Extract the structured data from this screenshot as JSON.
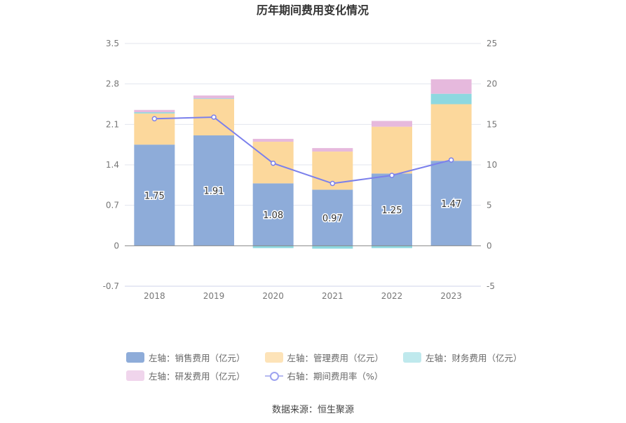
{
  "title": "历年期间费用变化情况",
  "source": "数据来源：恒生聚源",
  "chart_data": {
    "type": "bar",
    "stacked": true,
    "categories": [
      "2018",
      "2019",
      "2020",
      "2021",
      "2022",
      "2023"
    ],
    "left_axis": {
      "ylim": [
        -0.7,
        3.5
      ],
      "ticks": [
        "3.5",
        "2.8",
        "2.1",
        "1.4",
        "0.7",
        "0",
        "-0.7"
      ]
    },
    "right_axis": {
      "ylim": [
        -5,
        25
      ],
      "ticks": [
        "25",
        "20",
        "15",
        "10",
        "5",
        "0",
        "-5"
      ]
    },
    "series": [
      {
        "name": "左轴：销售费用（亿元）",
        "type": "bar",
        "axis": "left",
        "color": "#8eacd9",
        "values": [
          1.75,
          1.91,
          1.08,
          0.97,
          1.25,
          1.47
        ],
        "labels": [
          "1.75",
          "1.91",
          "1.08",
          "0.97",
          "1.25",
          "1.47"
        ]
      },
      {
        "name": "左轴：管理费用（亿元）",
        "type": "bar",
        "axis": "left",
        "color": "#fcd89c",
        "values": [
          0.54,
          0.63,
          0.72,
          0.66,
          0.81,
          0.98
        ]
      },
      {
        "name": "左轴：财务费用（亿元）",
        "type": "bar",
        "axis": "left",
        "color": "#8dd8e0",
        "values": [
          0.02,
          0.01,
          -0.04,
          -0.05,
          -0.04,
          0.18
        ]
      },
      {
        "name": "左轴：研发费用（亿元）",
        "type": "bar",
        "axis": "left",
        "color": "#e6b9dd",
        "values": [
          0.04,
          0.05,
          0.05,
          0.06,
          0.1,
          0.25
        ]
      },
      {
        "name": "右轴：期间费用率（%）",
        "type": "line",
        "axis": "right",
        "color": "#7b80ec",
        "values": [
          15.7,
          15.9,
          10.2,
          7.7,
          8.7,
          10.6
        ]
      }
    ],
    "legend_colors": [
      "#8eacd9",
      "#fde3b8",
      "#bfe9ed",
      "#f0d5ec"
    ],
    "grid": true,
    "legend_position": "bottom"
  }
}
